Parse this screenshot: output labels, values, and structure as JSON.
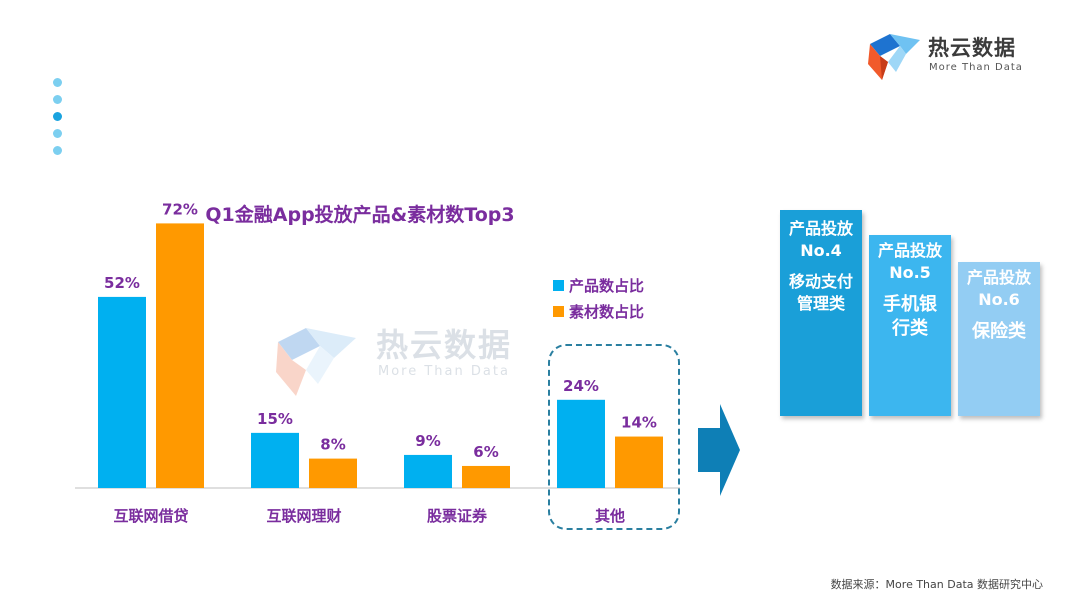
{
  "brand": {
    "name_cn": "热云数据",
    "name_en": "More Than Data"
  },
  "watermark": {
    "name_cn": "热云数据",
    "name_en": "More Than Data"
  },
  "colors": {
    "series1": "#00b0f0",
    "series2": "#ff9900",
    "title": "#7a2d9e",
    "axis": "#bfbfbf"
  },
  "chart_data": {
    "type": "bar",
    "title": "Q1金融App投放产品&素材数Top3",
    "categories": [
      "互联网借贷",
      "互联网理财",
      "股票证券",
      "其他"
    ],
    "series": [
      {
        "name": "产品数占比",
        "values": [
          52,
          15,
          9,
          24
        ],
        "labels": [
          "52%",
          "15%",
          "9%",
          "24%"
        ]
      },
      {
        "name": "素材数占比",
        "values": [
          72,
          8,
          6,
          14
        ],
        "labels": [
          "72%",
          "8%",
          "6%",
          "14%"
        ]
      }
    ],
    "ylim": [
      0,
      80
    ],
    "grid": false,
    "legend_position": "right",
    "highlighted_category": "其他"
  },
  "ranking": [
    {
      "line1": "产品投放",
      "line2": "No.4",
      "category_lines": [
        "移动支付",
        "管理类"
      ]
    },
    {
      "line1": "产品投放",
      "line2": "No.5",
      "category_lines": [
        "手机银",
        "行类"
      ]
    },
    {
      "line1": "产品投放",
      "line2": "No.6",
      "category_lines": [
        "保险类"
      ]
    }
  ],
  "source": "数据来源：More Than Data 数据研究中心"
}
